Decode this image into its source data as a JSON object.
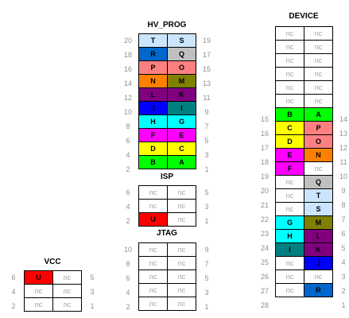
{
  "blocks": [
    {
      "title": "HV_PROG",
      "rows": [
        [
          20,
          "T",
          "S",
          19
        ],
        [
          18,
          "R",
          "Q",
          17
        ],
        [
          16,
          "P",
          "O",
          15
        ],
        [
          14,
          "N",
          "M",
          13
        ],
        [
          12,
          "L",
          "K",
          11
        ],
        [
          10,
          "J",
          "I",
          9
        ],
        [
          8,
          "H",
          "G",
          7
        ],
        [
          6,
          "F",
          "E",
          5
        ],
        [
          4,
          "D",
          "C",
          3
        ],
        [
          2,
          "B",
          "A",
          1
        ]
      ]
    },
    {
      "title": "ISP",
      "rows": [
        [
          6,
          "nc",
          "nc",
          5
        ],
        [
          4,
          "nc",
          "nc",
          3
        ],
        [
          2,
          "U",
          "nc",
          1
        ]
      ]
    },
    {
      "title": "JTAG",
      "rows": [
        [
          10,
          "nc",
          "nc",
          9
        ],
        [
          8,
          "nc",
          "nc",
          7
        ],
        [
          6,
          "nc",
          "nc",
          5
        ],
        [
          4,
          "nc",
          "nc",
          3
        ],
        [
          2,
          "nc",
          "nc",
          1
        ]
      ]
    },
    {
      "title": "VCC",
      "rows": [
        [
          6,
          "U",
          "nc",
          5
        ],
        [
          4,
          "nc",
          "nc",
          3
        ],
        [
          2,
          "nc",
          "nc",
          1
        ]
      ]
    },
    {
      "title": "DEVICE",
      "rows": [
        [
          "",
          "nc",
          "nc",
          ""
        ],
        [
          "",
          "nc",
          "nc",
          ""
        ],
        [
          "",
          "nc",
          "nc",
          ""
        ],
        [
          "",
          "nc",
          "nc",
          ""
        ],
        [
          "",
          "nc",
          "nc",
          ""
        ],
        [
          "",
          "nc",
          "nc",
          ""
        ],
        [
          15,
          "B",
          "A",
          14
        ],
        [
          16,
          "C",
          "P",
          13
        ],
        [
          17,
          "D",
          "O",
          12
        ],
        [
          18,
          "E",
          "N",
          11
        ],
        [
          19,
          "F",
          "nc",
          10
        ],
        [
          20,
          "nc",
          "Q",
          9
        ],
        [
          21,
          "nc",
          "T",
          8
        ],
        [
          22,
          "nc",
          "S",
          7
        ],
        [
          23,
          "G",
          "M",
          6
        ],
        [
          24,
          "H",
          "L",
          5
        ],
        [
          25,
          "I",
          "K",
          4
        ],
        [
          26,
          "nc",
          "J",
          3
        ],
        [
          27,
          "nc",
          "nc",
          2
        ],
        [
          28,
          "nc",
          "R",
          1
        ]
      ]
    }
  ],
  "signal_colors": {
    "A": "#00ff00",
    "B": "#00ff00",
    "C": "#ffff00",
    "D": "#ffff00",
    "E": "#ff00ff",
    "F": "#ff00ff",
    "G": "#00ffff",
    "H": "#00ffff",
    "I": "#008080",
    "J": "#0000ff",
    "K": "#800080",
    "L": "#800080",
    "M": "#808000",
    "N": "#ff8000",
    "O": "#ff8080",
    "P": "#ff8080",
    "Q": "#c0c0c0",
    "R": "#0066cc",
    "S": "#cce5ff",
    "T": "#cce5ff",
    "U": "#ff0000"
  }
}
